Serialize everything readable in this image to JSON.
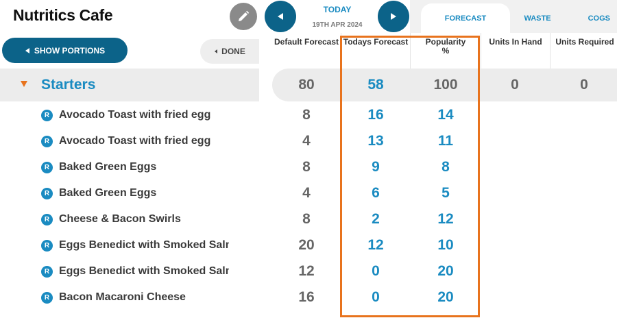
{
  "app": {
    "title": "Nutritics Cafe"
  },
  "nav": {
    "today_label": "TODAY",
    "date": "19TH APR 2024"
  },
  "tabs": [
    {
      "label": "FORECAST"
    },
    {
      "label": "WASTE"
    },
    {
      "label": "COGS"
    }
  ],
  "controls": {
    "show_portions": "SHOW PORTIONS",
    "done": "DONE"
  },
  "columns": [
    {
      "label": "Default Forecast"
    },
    {
      "label": "Todays Forecast"
    },
    {
      "label": "Popularity\n%"
    },
    {
      "label": "Units In Hand"
    },
    {
      "label": "Units Required"
    }
  ],
  "category": {
    "name": "Starters",
    "default_forecast": "80",
    "todays_forecast": "58",
    "popularity": "100",
    "units_in_hand": "0",
    "units_required": "0"
  },
  "items": [
    {
      "badge": "R",
      "name": "Avocado Toast with fried egg",
      "default_forecast": "8",
      "todays_forecast": "16",
      "popularity": "14"
    },
    {
      "badge": "R",
      "name": "Avocado Toast with fried egg",
      "default_forecast": "4",
      "todays_forecast": "13",
      "popularity": "11"
    },
    {
      "badge": "R",
      "name": "Baked Green Eggs",
      "default_forecast": "8",
      "todays_forecast": "9",
      "popularity": "8"
    },
    {
      "badge": "R",
      "name": "Baked Green Eggs",
      "default_forecast": "4",
      "todays_forecast": "6",
      "popularity": "5"
    },
    {
      "badge": "R",
      "name": "Cheese & Bacon Swirls",
      "default_forecast": "8",
      "todays_forecast": "2",
      "popularity": "12"
    },
    {
      "badge": "R",
      "name": "Eggs Benedict with Smoked Salmon",
      "default_forecast": "20",
      "todays_forecast": "12",
      "popularity": "10"
    },
    {
      "badge": "R",
      "name": "Eggs Benedict with Smoked Salmon",
      "default_forecast": "12",
      "todays_forecast": "0",
      "popularity": "20"
    },
    {
      "badge": "R",
      "name": "Bacon Macaroni Cheese",
      "default_forecast": "16",
      "todays_forecast": "0",
      "popularity": "20"
    }
  ],
  "colors": {
    "accent": "#1a8bc1",
    "primary_dark": "#0c6389",
    "highlight": "#e8731d"
  },
  "icons": {
    "edit": "pencil-icon",
    "prev": "triangle-left-icon",
    "next": "triangle-right-icon",
    "expand": "triangle-down-icon"
  }
}
